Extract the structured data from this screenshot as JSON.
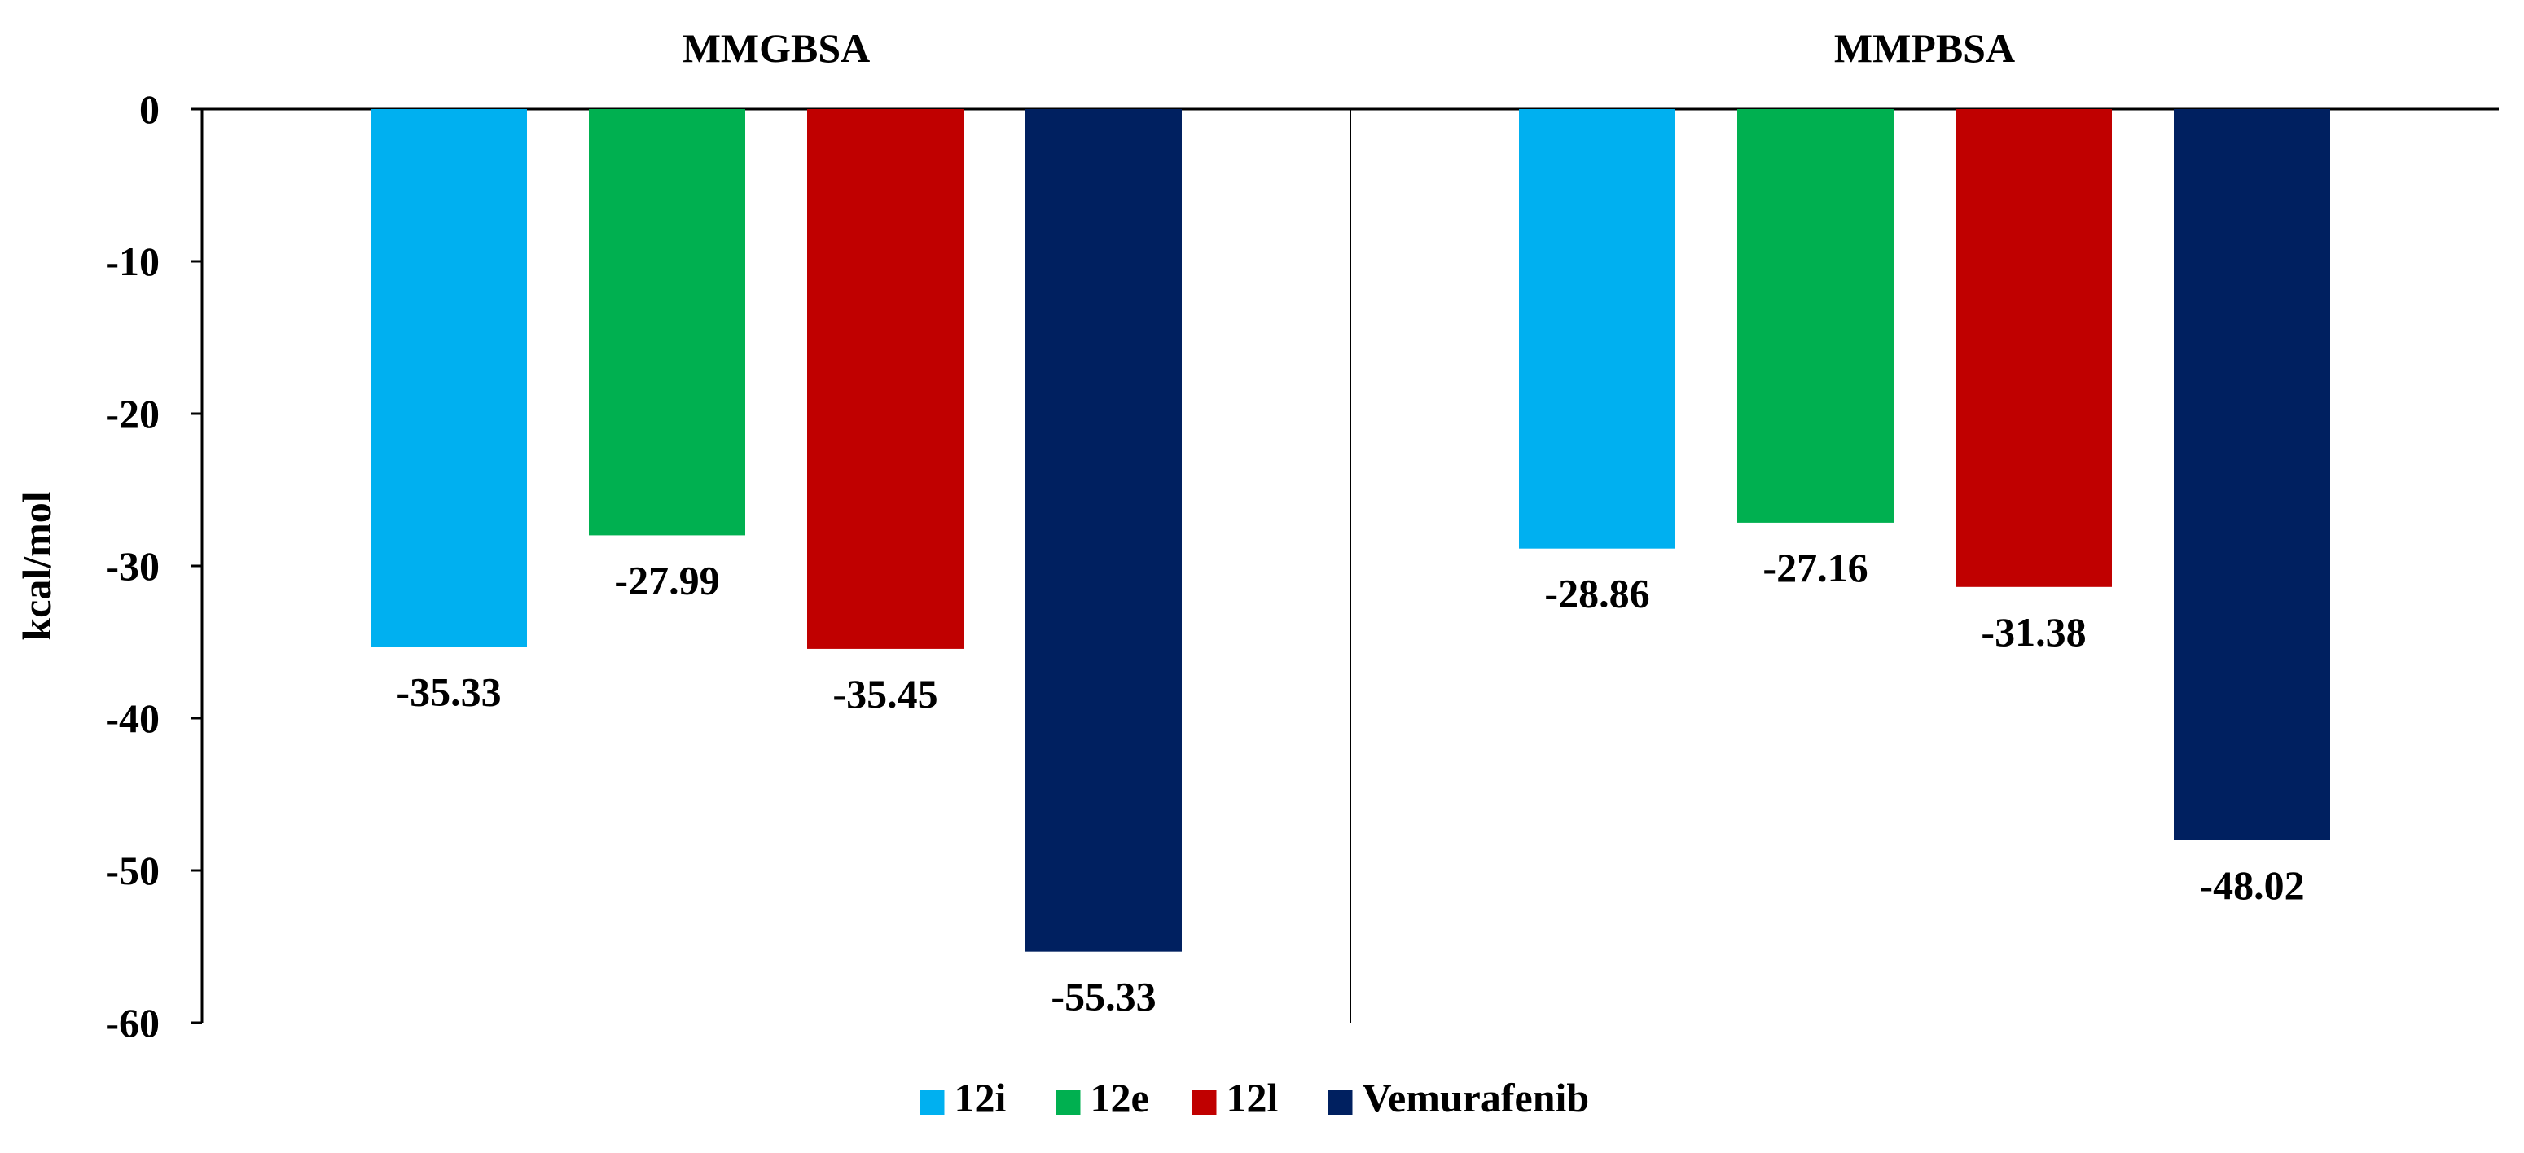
{
  "chart_data": {
    "type": "bar",
    "ylabel": "kcal/mol",
    "ylim": [
      -60,
      0
    ],
    "yticks": [
      0,
      -10,
      -20,
      -30,
      -40,
      -50,
      -60
    ],
    "ytick_labels": [
      "0",
      "-10",
      "-20",
      "-30",
      "-40",
      "-50",
      "-60"
    ],
    "categories": [
      "MMGBSA",
      "MMPBSA"
    ],
    "series": [
      {
        "name": "12i",
        "color": "#00B0F0",
        "values": [
          -35.33,
          -28.86
        ],
        "labels": [
          "-35.33",
          "-28.86"
        ]
      },
      {
        "name": "12e",
        "color": "#00B050",
        "values": [
          -27.99,
          -27.16
        ],
        "labels": [
          "-27.99",
          "-27.16"
        ]
      },
      {
        "name": "12l",
        "color": "#C00000",
        "values": [
          -35.45,
          -31.38
        ],
        "labels": [
          "-35.45",
          "-31.38"
        ]
      },
      {
        "name": "Vemurafenib",
        "color": "#002060",
        "values": [
          -55.33,
          -48.02
        ],
        "labels": [
          "-55.33",
          "-48.02"
        ]
      }
    ],
    "legend_position": "bottom-center",
    "grid": false
  }
}
